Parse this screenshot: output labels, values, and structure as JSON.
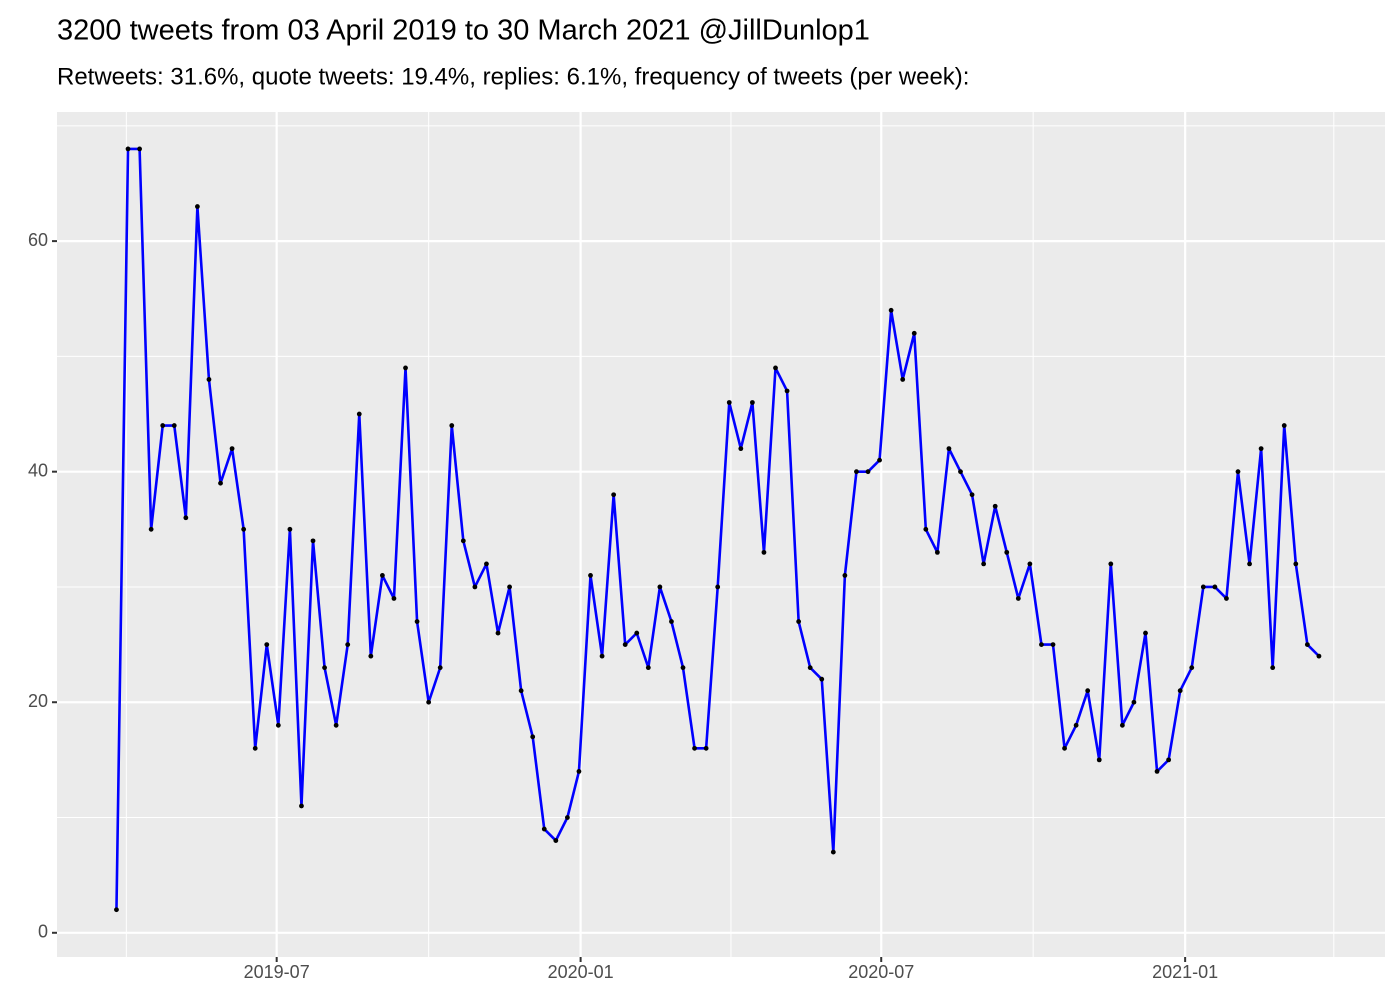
{
  "chart_data": {
    "type": "line",
    "title": "3200 tweets from 03 April 2019 to 30 March 2021 @JillDunlop1",
    "subtitle": "Retweets: 31.6%, quote tweets: 19.4%, replies: 6.1%, frequency of tweets (per week):",
    "x": [
      "2019-03-26",
      "2019-04-02",
      "2019-04-09",
      "2019-04-16",
      "2019-04-23",
      "2019-04-30",
      "2019-05-07",
      "2019-05-14",
      "2019-05-21",
      "2019-05-28",
      "2019-06-04",
      "2019-06-11",
      "2019-06-18",
      "2019-06-25",
      "2019-07-02",
      "2019-07-09",
      "2019-07-16",
      "2019-07-23",
      "2019-07-30",
      "2019-08-06",
      "2019-08-13",
      "2019-08-20",
      "2019-08-27",
      "2019-09-03",
      "2019-09-10",
      "2019-09-17",
      "2019-09-24",
      "2019-10-01",
      "2019-10-08",
      "2019-10-15",
      "2019-10-22",
      "2019-10-29",
      "2019-11-05",
      "2019-11-12",
      "2019-11-19",
      "2019-11-26",
      "2019-12-03",
      "2019-12-10",
      "2019-12-17",
      "2019-12-24",
      "2019-12-31",
      "2020-01-07",
      "2020-01-14",
      "2020-01-21",
      "2020-01-28",
      "2020-02-04",
      "2020-02-11",
      "2020-02-18",
      "2020-02-25",
      "2020-03-03",
      "2020-03-10",
      "2020-03-17",
      "2020-03-24",
      "2020-03-31",
      "2020-04-07",
      "2020-04-14",
      "2020-04-21",
      "2020-04-28",
      "2020-05-05",
      "2020-05-12",
      "2020-05-19",
      "2020-05-26",
      "2020-06-02",
      "2020-06-09",
      "2020-06-16",
      "2020-06-23",
      "2020-06-30",
      "2020-07-07",
      "2020-07-14",
      "2020-07-21",
      "2020-07-28",
      "2020-08-04",
      "2020-08-11",
      "2020-08-18",
      "2020-08-25",
      "2020-09-01",
      "2020-09-08",
      "2020-09-15",
      "2020-09-22",
      "2020-09-29",
      "2020-10-06",
      "2020-10-13",
      "2020-10-20",
      "2020-10-27",
      "2020-11-03",
      "2020-11-10",
      "2020-11-17",
      "2020-11-24",
      "2020-12-01",
      "2020-12-08",
      "2020-12-15",
      "2020-12-22",
      "2020-12-29",
      "2021-01-05",
      "2021-01-12",
      "2021-01-19",
      "2021-01-26",
      "2021-02-02",
      "2021-02-09",
      "2021-02-16",
      "2021-02-23",
      "2021-03-02",
      "2021-03-09",
      "2021-03-16",
      "2021-03-23"
    ],
    "values": [
      2,
      68,
      68,
      35,
      44,
      44,
      36,
      63,
      48,
      39,
      42,
      35,
      16,
      25,
      18,
      35,
      11,
      34,
      23,
      18,
      25,
      45,
      24,
      31,
      29,
      49,
      27,
      20,
      23,
      44,
      34,
      30,
      32,
      26,
      30,
      21,
      17,
      9,
      8,
      10,
      14,
      31,
      24,
      38,
      25,
      26,
      23,
      30,
      27,
      23,
      16,
      16,
      30,
      46,
      42,
      46,
      33,
      49,
      47,
      27,
      23,
      22,
      7,
      31,
      40,
      40,
      41,
      54,
      48,
      52,
      35,
      33,
      42,
      40,
      38,
      32,
      37,
      33,
      29,
      32,
      25,
      25,
      16,
      18,
      21,
      15,
      32,
      18,
      20,
      26,
      14,
      15,
      21,
      23,
      30,
      30,
      29,
      40,
      32,
      42,
      23,
      44,
      32,
      25,
      24
    ],
    "color": "#0000ff",
    "point_color": "#000000",
    "xlim": [
      "2019-02-18",
      "2021-05-02"
    ],
    "xticks": [
      {
        "value": "2019-07-01",
        "label": "2019-07"
      },
      {
        "value": "2020-01-01",
        "label": "2020-01"
      },
      {
        "value": "2020-07-01",
        "label": "2020-07"
      },
      {
        "value": "2021-01-01",
        "label": "2021-01"
      }
    ],
    "x_minor_ticks": [
      "2019-04-01",
      "2019-10-01",
      "2020-04-01",
      "2020-10-01",
      "2021-04-01"
    ],
    "ylim": [
      -2.1,
      71.2
    ],
    "yticks": [
      0,
      20,
      40,
      60
    ],
    "y_minor_ticks": [
      10,
      30,
      50,
      70
    ],
    "grid": true
  }
}
